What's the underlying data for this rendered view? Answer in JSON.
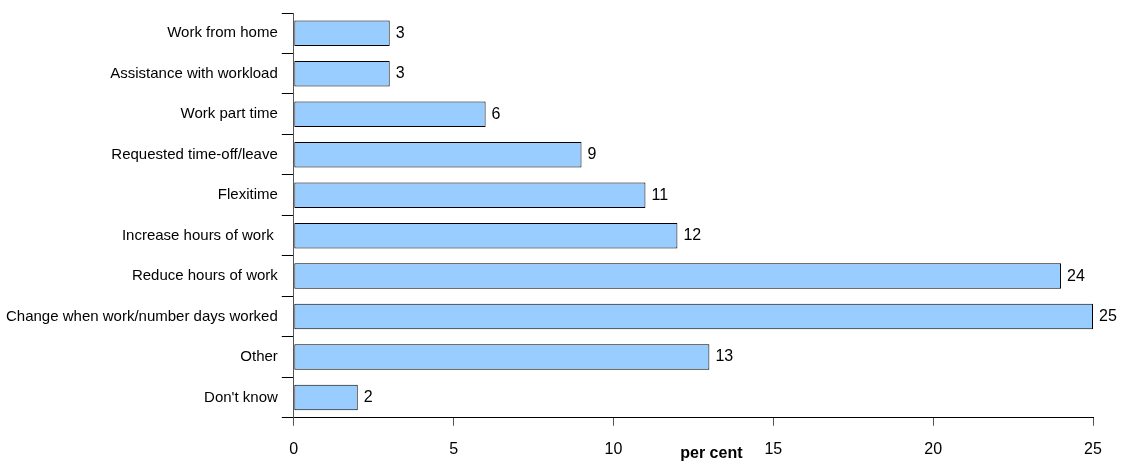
{
  "chart_data": {
    "type": "bar",
    "orientation": "horizontal",
    "xlabel": "per cent",
    "categories": [
      "Work from home",
      "Assistance with workload",
      "Work part time",
      "Requested time-off/leave",
      "Flexitime",
      "Increase hours of work ",
      "Reduce hours of work",
      "Change when work/number days worked",
      "Other",
      "Don't know"
    ],
    "values": [
      3,
      3,
      6,
      9,
      11,
      12,
      24,
      25,
      13,
      2
    ],
    "color": "#99ccff",
    "xlim": [
      0,
      25
    ],
    "xticks": [
      0,
      5,
      10,
      15,
      20,
      25
    ],
    "grid": false,
    "legend": false,
    "data_labels": true
  }
}
